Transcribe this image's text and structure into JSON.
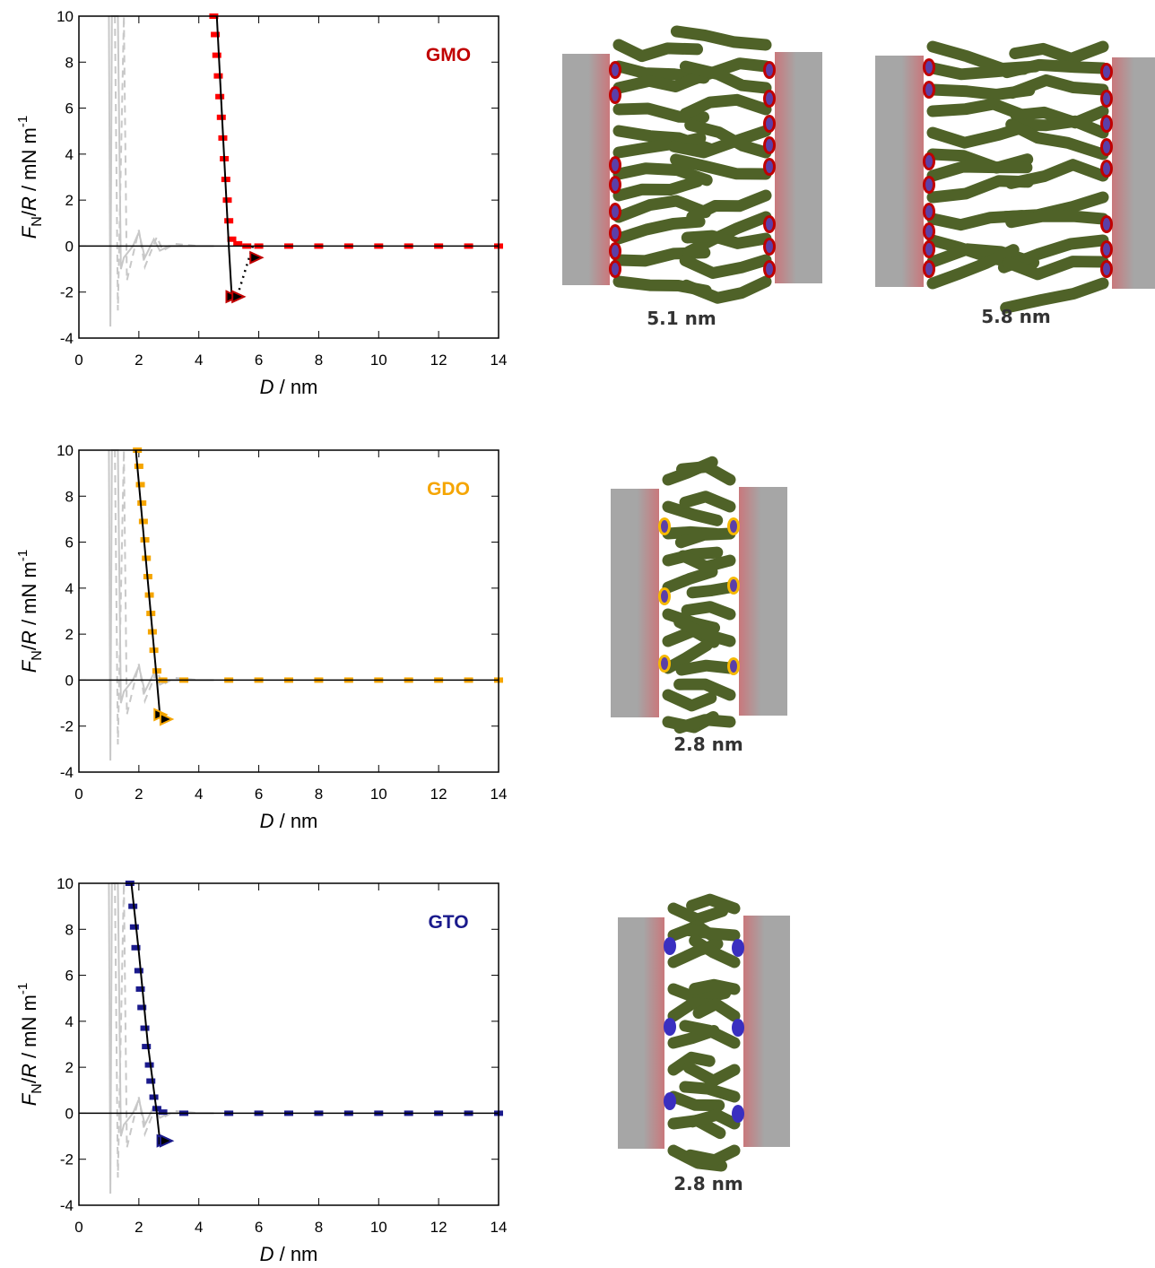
{
  "chart_data": [
    {
      "type": "line",
      "annotation": "GMO",
      "annotation_color": "#c00000",
      "x_label": [
        "D",
        " / nm"
      ],
      "y_label": [
        "F",
        "N",
        "/",
        "R",
        " / mN m",
        "-1"
      ],
      "xlim": [
        0,
        14
      ],
      "ylim": [
        -4,
        10
      ],
      "xticks": [
        0,
        2,
        4,
        6,
        8,
        10,
        12,
        14
      ],
      "yticks": [
        -4,
        -2,
        0,
        2,
        4,
        6,
        8,
        10
      ],
      "hline": 0,
      "series": [
        {
          "style": "solid",
          "color": "#c8c8c8",
          "x": [
            1.0,
            1.05,
            1.1,
            1.3,
            1.4,
            1.5,
            1.8,
            2.0,
            2.2,
            2.5,
            2.7,
            3.0,
            3.5,
            4.5
          ],
          "values": [
            10,
            -3.5,
            10,
            10,
            -1.0,
            -0.5,
            0.0,
            0.6,
            -0.5,
            0.3,
            -0.2,
            0.0,
            0,
            0
          ]
        },
        {
          "style": "dashed",
          "color": "#c8c8c8",
          "x": [
            1.2,
            1.3,
            1.5,
            1.6,
            2.0,
            2.2,
            2.6,
            2.8,
            3.2,
            4.0
          ],
          "values": [
            10,
            -2.8,
            10,
            -1.5,
            0.7,
            -0.9,
            0.4,
            -0.2,
            0.1,
            0
          ]
        },
        {
          "style": "points",
          "color": "#ff0000",
          "x": [
            4.5,
            4.55,
            4.6,
            4.65,
            4.7,
            4.75,
            4.8,
            4.85,
            4.9,
            4.95,
            5.0,
            5.1,
            5.3,
            5.6,
            6,
            7,
            8,
            9,
            10,
            11,
            12,
            13,
            14
          ],
          "values": [
            10,
            9.2,
            8.3,
            7.4,
            6.5,
            5.6,
            4.7,
            3.8,
            2.9,
            2.0,
            1.1,
            0.3,
            0.1,
            0,
            0,
            0,
            0,
            0,
            0,
            0,
            0,
            0,
            0
          ]
        },
        {
          "style": "solid",
          "color": "#000000",
          "x": [
            4.6,
            5.0,
            5.1
          ],
          "values": [
            10,
            0,
            -2.2
          ]
        },
        {
          "style": "dotted",
          "color": "#000000",
          "x": [
            5.8,
            5.3
          ],
          "values": [
            0,
            -2.1
          ]
        },
        {
          "style": "triangles",
          "color": "#c00000",
          "x": [
            5.1,
            5.3,
            5.9
          ],
          "values": [
            -2.2,
            -2.2,
            -0.5
          ]
        }
      ]
    },
    {
      "type": "line",
      "annotation": "GDO",
      "annotation_color": "#f5a500",
      "x_label": [
        "D",
        " / nm"
      ],
      "y_label": [
        "F",
        "N",
        "/",
        "R",
        " / mN m",
        "-1"
      ],
      "xlim": [
        0,
        14
      ],
      "ylim": [
        -4,
        10
      ],
      "xticks": [
        0,
        2,
        4,
        6,
        8,
        10,
        12,
        14
      ],
      "yticks": [
        -4,
        -2,
        0,
        2,
        4,
        6,
        8,
        10
      ],
      "hline": 0,
      "series": [
        {
          "style": "solid",
          "color": "#c8c8c8",
          "x": [
            1.0,
            1.05,
            1.1,
            1.3,
            1.4,
            1.5,
            1.8,
            2.0,
            2.2,
            2.5,
            2.7,
            3.0,
            3.5,
            4.5
          ],
          "values": [
            10,
            -3.5,
            10,
            10,
            -1.0,
            -0.5,
            0.0,
            0.6,
            -0.5,
            0.3,
            -0.2,
            0.0,
            0,
            0
          ]
        },
        {
          "style": "dashed",
          "color": "#c8c8c8",
          "x": [
            1.2,
            1.3,
            1.5,
            1.6,
            2.0,
            2.2,
            2.6,
            2.8,
            3.2,
            4.0
          ],
          "values": [
            10,
            -2.8,
            10,
            -1.5,
            0.7,
            -0.9,
            0.4,
            -0.2,
            0.1,
            0
          ]
        },
        {
          "style": "points",
          "color": "#f5a500",
          "x": [
            1.95,
            2.0,
            2.05,
            2.1,
            2.15,
            2.2,
            2.25,
            2.3,
            2.35,
            2.4,
            2.45,
            2.5,
            2.6,
            2.8,
            3.5,
            5,
            6,
            7,
            8,
            9,
            10,
            11,
            12,
            13,
            14
          ],
          "values": [
            10,
            9.3,
            8.5,
            7.7,
            6.9,
            6.1,
            5.3,
            4.5,
            3.7,
            2.9,
            2.1,
            1.3,
            0.4,
            0,
            0,
            0,
            0,
            0,
            0,
            0,
            0,
            0,
            0,
            0,
            0
          ]
        },
        {
          "style": "solid",
          "color": "#000000",
          "x": [
            1.9,
            2.6,
            2.7
          ],
          "values": [
            10,
            0,
            -1.5
          ]
        },
        {
          "style": "triangles",
          "color": "#f5a500",
          "x": [
            2.7,
            2.9
          ],
          "values": [
            -1.5,
            -1.7
          ]
        }
      ]
    },
    {
      "type": "line",
      "annotation": "GTO",
      "annotation_color": "#1a1a8c",
      "x_label": [
        "D",
        " / nm"
      ],
      "y_label": [
        "F",
        "N",
        "/",
        "R",
        " / mN m",
        "-1"
      ],
      "xlim": [
        0,
        14
      ],
      "ylim": [
        -4,
        10
      ],
      "xticks": [
        0,
        2,
        4,
        6,
        8,
        10,
        12,
        14
      ],
      "yticks": [
        -4,
        -2,
        0,
        2,
        4,
        6,
        8,
        10
      ],
      "hline": 0,
      "series": [
        {
          "style": "solid",
          "color": "#c8c8c8",
          "x": [
            1.0,
            1.05,
            1.1,
            1.3,
            1.4,
            1.5,
            1.8,
            2.0,
            2.2,
            2.5,
            2.7,
            3.0,
            3.5,
            4.5
          ],
          "values": [
            10,
            -3.5,
            10,
            10,
            -1.0,
            -0.5,
            0.0,
            0.6,
            -0.5,
            0.3,
            -0.2,
            0.0,
            0,
            0
          ]
        },
        {
          "style": "dashed",
          "color": "#c8c8c8",
          "x": [
            1.2,
            1.3,
            1.5,
            1.6,
            2.0,
            2.2,
            2.6,
            2.8,
            3.2,
            4.0
          ],
          "values": [
            10,
            -2.8,
            10,
            -1.5,
            0.7,
            -0.9,
            0.4,
            -0.2,
            0.1,
            0
          ]
        },
        {
          "style": "points",
          "color": "#1a1a8c",
          "x": [
            1.7,
            1.8,
            1.85,
            1.9,
            2.0,
            2.05,
            2.1,
            2.2,
            2.25,
            2.35,
            2.4,
            2.5,
            2.6,
            2.8,
            3.5,
            5,
            6,
            7,
            8,
            9,
            10,
            11,
            12,
            13,
            14
          ],
          "values": [
            10,
            9.0,
            8.1,
            7.2,
            6.2,
            5.4,
            4.6,
            3.7,
            2.9,
            2.1,
            1.4,
            0.7,
            0.2,
            0.05,
            0,
            0,
            0,
            0,
            0,
            0,
            0,
            0,
            0,
            0,
            0
          ]
        },
        {
          "style": "solid",
          "color": "#000000",
          "x": [
            1.75,
            2.0,
            2.3,
            2.6,
            2.7
          ],
          "values": [
            10,
            7,
            3,
            0,
            -1.2
          ]
        },
        {
          "style": "triangles",
          "color": "#1a1a8c",
          "x": [
            2.8,
            2.9
          ],
          "values": [
            -1.2,
            -1.2
          ]
        }
      ]
    }
  ],
  "schematics": [
    {
      "label": "5.1 nm"
    },
    {
      "label": "5.8 nm"
    },
    {
      "label": "2.8 nm"
    },
    {
      "label": "2.8 nm"
    }
  ]
}
